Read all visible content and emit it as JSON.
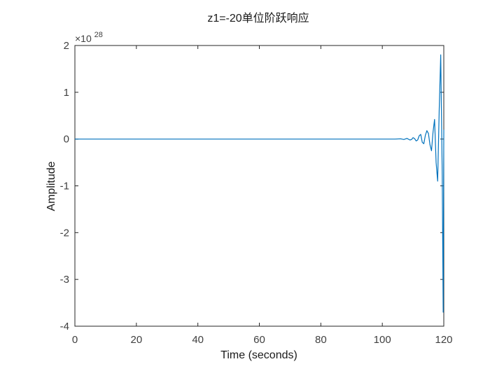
{
  "chart_data": {
    "type": "line",
    "title": "z1=-20单位阶跃响应",
    "xlabel": "Time (seconds)",
    "ylabel": "Amplitude",
    "xlim": [
      0,
      120
    ],
    "ylim": [
      -4,
      2
    ],
    "y_multiplier_label": "×10",
    "y_multiplier_exponent": "28",
    "xticks": [
      0,
      20,
      40,
      60,
      80,
      100,
      120
    ],
    "xtick_labels": [
      "0",
      "20",
      "40",
      "60",
      "80",
      "100",
      "120"
    ],
    "yticks": [
      2,
      1,
      0,
      -1,
      -2,
      -3,
      -4
    ],
    "ytick_labels": [
      "2",
      "1",
      "0",
      "-1",
      "-2",
      "-3",
      "-4"
    ],
    "grid": false,
    "colors": {
      "line": "#0072bd",
      "axes": "#262626",
      "background": "#ffffff"
    },
    "series": [
      {
        "x": [
          0,
          104,
          106,
          107,
          108,
          109,
          109.5,
          110,
          110.5,
          111,
          111.5,
          112,
          112.5,
          113,
          113.5,
          114,
          114.5,
          115,
          115.5,
          116,
          116.5,
          117,
          117.5,
          118,
          118.5,
          119,
          119.5,
          119.8,
          120
        ],
        "y": [
          0,
          0,
          0.005,
          -0.01,
          0.015,
          -0.02,
          -0.01,
          0.03,
          0.01,
          -0.04,
          -0.02,
          0.07,
          0.1,
          -0.07,
          -0.1,
          0.08,
          0.18,
          0.12,
          -0.12,
          -0.25,
          0.15,
          0.42,
          -0.5,
          -0.9,
          0.6,
          1.8,
          -0.8,
          -3.7,
          0.2
        ]
      }
    ]
  }
}
